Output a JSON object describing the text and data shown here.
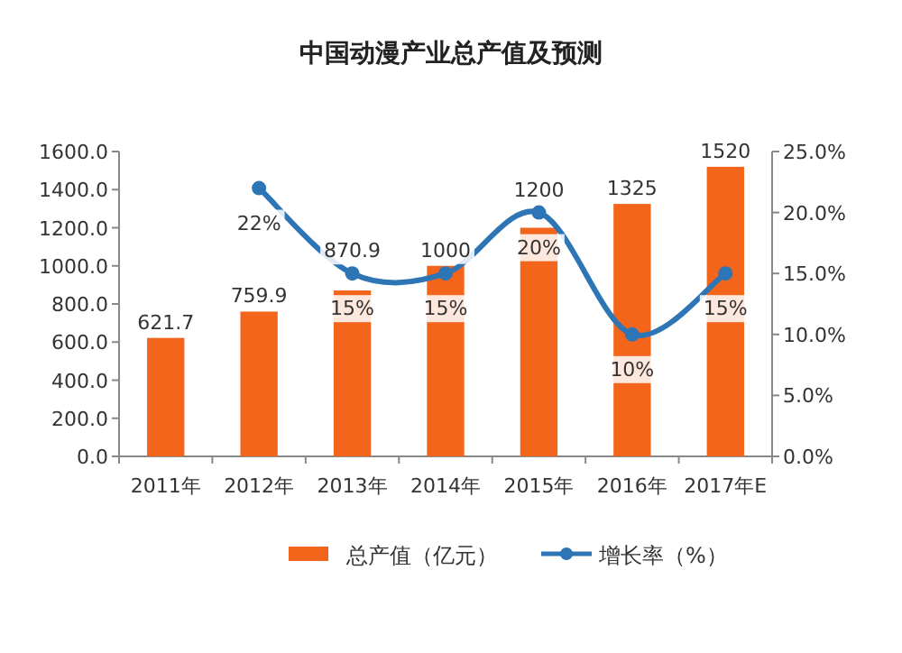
{
  "chart_data": {
    "type": "bar",
    "title": "中国动漫产业总产值及预测",
    "categories": [
      "2011年",
      "2012年",
      "2013年",
      "2014年",
      "2015年",
      "2016年",
      "2017年E"
    ],
    "series": [
      {
        "name": "总产值（亿元）",
        "color": "#f4651c",
        "values": [
          621.7,
          759.9,
          870.9,
          1000,
          1200,
          1325,
          1520
        ]
      },
      {
        "name": "增长率（%）",
        "type": "line",
        "axis": "y2",
        "color": "#2e75b6",
        "values": [
          null,
          22,
          15,
          15,
          20,
          10,
          15
        ],
        "value_labels": [
          null,
          "22%",
          "15%",
          "15%",
          "20%",
          "10%",
          "15%"
        ]
      }
    ],
    "ylim": [
      0,
      1600
    ],
    "yticks": [
      {
        "value": 0,
        "label": "0.0"
      },
      {
        "value": 200,
        "label": "200.0"
      },
      {
        "value": 400,
        "label": "400.0"
      },
      {
        "value": 600,
        "label": "600.0"
      },
      {
        "value": 800,
        "label": "800.0"
      },
      {
        "value": 1000,
        "label": "1000.0"
      },
      {
        "value": 1200,
        "label": "1200.0"
      },
      {
        "value": 1400,
        "label": "1400.0"
      },
      {
        "value": 1600,
        "label": "1600.0"
      }
    ],
    "y2lim": [
      0,
      25
    ],
    "y2ticks": [
      {
        "value": 0,
        "label": "0.0%"
      },
      {
        "value": 5,
        "label": "5.0%"
      },
      {
        "value": 10,
        "label": "10.0%"
      },
      {
        "value": 15,
        "label": "15.0%"
      },
      {
        "value": 20,
        "label": "20.0%"
      },
      {
        "value": 25,
        "label": "25.0%"
      }
    ],
    "data_labels": true,
    "marker": "circle",
    "grid": false,
    "legend": "bottom"
  }
}
